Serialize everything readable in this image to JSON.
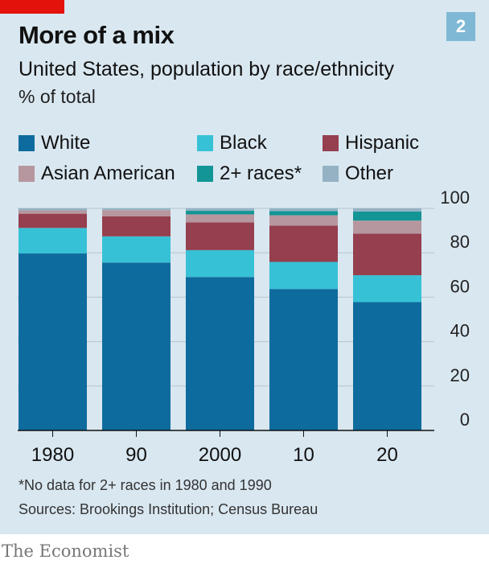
{
  "header": {
    "chart_number": "2",
    "title": "More of a mix",
    "subtitle": "United States, population by race/ethnicity",
    "unit": "% of total"
  },
  "footer": {
    "footnote": "*No data for 2+ races in 1980 and 1990",
    "source": "Sources: Brookings Institution; Census Bureau",
    "brand": "The Economist"
  },
  "colors": {
    "panel": "#d9e7f0",
    "accent": "#e3120b",
    "badge": "#7fb8d4"
  },
  "chart_data": {
    "type": "bar",
    "stacked": true,
    "title": "More of a mix",
    "subtitle": "United States, population by race/ethnicity",
    "ylabel": "% of total",
    "xlabel": "",
    "ylim": [
      0,
      100
    ],
    "yticks": [
      "0",
      "20",
      "40",
      "60",
      "80",
      "100"
    ],
    "categories": [
      "1980",
      "90",
      "2000",
      "10",
      "20"
    ],
    "legend_position": "top",
    "grid": "horizontal",
    "series": [
      {
        "name": "White",
        "color": "#0e6b9e",
        "values": [
          79.7,
          75.6,
          69.1,
          63.7,
          57.8
        ]
      },
      {
        "name": "Black",
        "color": "#37c1d6",
        "values": [
          11.5,
          11.8,
          12.1,
          12.2,
          12.1
        ]
      },
      {
        "name": "Hispanic",
        "color": "#953f4f",
        "values": [
          6.4,
          9.0,
          12.5,
          16.3,
          18.7
        ]
      },
      {
        "name": "Asian American",
        "color": "#b7979f",
        "values": [
          1.5,
          2.8,
          3.6,
          4.7,
          5.9
        ]
      },
      {
        "name": "2+ races*",
        "color": "#139596",
        "values": [
          0,
          0,
          1.6,
          1.9,
          4.1
        ]
      },
      {
        "name": "Other",
        "color": "#94b2c3",
        "values": [
          0.9,
          0.8,
          1.1,
          1.2,
          1.4
        ]
      }
    ]
  }
}
